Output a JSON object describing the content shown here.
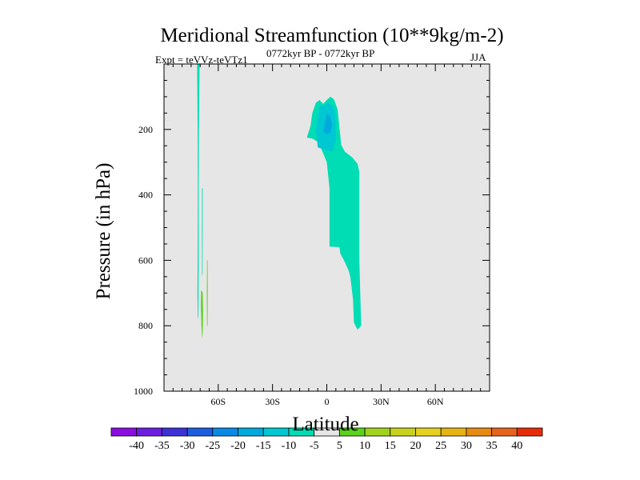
{
  "chart_data": {
    "type": "contour",
    "title": "Meridional Streamfunction (10**9kg/m-2)",
    "left_label": "Expt = teVVz-teVTz1",
    "center_label": "0772kyr BP - 0772kyr BP",
    "right_label": "JJA",
    "xlabel": "Latitude",
    "ylabel": "Pressure (in hPa)",
    "xlim": [
      -90,
      90
    ],
    "ylim": [
      1000,
      0
    ],
    "y_reversed": true,
    "x_ticks": [
      {
        "value": -60,
        "label": "60S"
      },
      {
        "value": -30,
        "label": "30S"
      },
      {
        "value": 0,
        "label": "0"
      },
      {
        "value": 30,
        "label": "30N"
      },
      {
        "value": 60,
        "label": "60N"
      }
    ],
    "y_ticks": [
      {
        "value": 200,
        "label": "200"
      },
      {
        "value": 400,
        "label": "400"
      },
      {
        "value": 600,
        "label": "600"
      },
      {
        "value": 800,
        "label": "800"
      },
      {
        "value": 1000,
        "label": "1000"
      }
    ],
    "background_color": "#e6e6e6",
    "colorbar": {
      "boundaries": [
        -45,
        -40,
        -35,
        -30,
        -25,
        -20,
        -15,
        -10,
        -5,
        5,
        10,
        15,
        20,
        25,
        30,
        35,
        40,
        45
      ],
      "labels": [
        "-40",
        "-35",
        "-30",
        "-25",
        "-20",
        "-15",
        "-10",
        "-5",
        "5",
        "10",
        "15",
        "20",
        "25",
        "30",
        "35",
        "40"
      ],
      "colors": [
        "#8a0ee0",
        "#6b1ee0",
        "#3c32d8",
        "#1d5ee0",
        "#0a8ae6",
        "#00aadc",
        "#00c8d2",
        "#00dcb4",
        "#e6e6e6",
        "#5ad21e",
        "#a0d21e",
        "#c8d21e",
        "#e6d21e",
        "#e6b414",
        "#e68c14",
        "#e6641e",
        "#e62d0a"
      ]
    },
    "regions": [
      {
        "name": "southern-hemisphere-cell",
        "fill": "#00dcb4",
        "value_range": [
          -10,
          -5
        ],
        "points": [
          [
            -11,
            225
          ],
          [
            -9,
            190
          ],
          [
            -8,
            150
          ],
          [
            -6,
            118
          ],
          [
            -4,
            110
          ],
          [
            -2,
            122
          ],
          [
            0,
            110
          ],
          [
            2,
            100
          ],
          [
            4,
            108
          ],
          [
            6,
            140
          ],
          [
            7,
            195
          ],
          [
            8,
            248
          ],
          [
            10,
            268
          ],
          [
            14,
            285
          ],
          [
            17,
            305
          ],
          [
            18,
            330
          ],
          [
            18,
            400
          ],
          [
            18,
            500
          ],
          [
            18,
            600
          ],
          [
            18.5,
            700
          ],
          [
            19,
            800
          ],
          [
            17,
            812
          ],
          [
            15,
            790
          ],
          [
            14.5,
            720
          ],
          [
            13,
            650
          ],
          [
            12,
            630
          ],
          [
            9.5,
            600
          ],
          [
            7.5,
            580
          ],
          [
            7,
            560
          ],
          [
            1.5,
            558
          ],
          [
            1.5,
            500
          ],
          [
            1.5,
            380
          ],
          [
            0,
            300
          ],
          [
            -3,
            260
          ],
          [
            -5,
            238
          ],
          [
            -8,
            228
          ]
        ]
      },
      {
        "name": "cell-core-outer",
        "fill": "#00c8d2",
        "value_range": [
          -15,
          -10
        ],
        "points": [
          [
            -5,
            255
          ],
          [
            -6,
            200
          ],
          [
            -5,
            165
          ],
          [
            -4,
            130
          ],
          [
            -1,
            128
          ],
          [
            0,
            118
          ],
          [
            2,
            124
          ],
          [
            4,
            132
          ],
          [
            5,
            175
          ],
          [
            5,
            230
          ],
          [
            3,
            268
          ],
          [
            -1,
            262
          ]
        ]
      },
      {
        "name": "cell-core-inner",
        "fill": "#00aadc",
        "value_range": [
          -20,
          -15
        ],
        "points": [
          [
            -2,
            205
          ],
          [
            -1,
            180
          ],
          [
            0,
            150
          ],
          [
            2,
            162
          ],
          [
            3,
            190
          ],
          [
            2,
            210
          ],
          [
            0,
            215
          ]
        ]
      },
      {
        "name": "polar-strip-main",
        "fill": "#00dcb4",
        "value_range": [
          -10,
          -5
        ],
        "points": [
          [
            -71.7,
            0
          ],
          [
            -70.3,
            0
          ],
          [
            -70.7,
            200
          ],
          [
            -70.8,
            400
          ],
          [
            -70.8,
            600
          ],
          [
            -71,
            770
          ],
          [
            -71.3,
            780
          ],
          [
            -71.5,
            700
          ],
          [
            -71.4,
            600
          ],
          [
            -71.3,
            400
          ],
          [
            -71.4,
            200
          ]
        ]
      },
      {
        "name": "polar-strip-small",
        "fill": "#00dcb4",
        "value_range": [
          -10,
          -5
        ],
        "points": [
          [
            -69,
            380
          ],
          [
            -68.6,
            380
          ],
          [
            -68.6,
            500
          ],
          [
            -68.7,
            640
          ],
          [
            -69,
            650
          ],
          [
            -69,
            520
          ]
        ]
      },
      {
        "name": "polar-strip-positive-1",
        "fill": "#5ad21e",
        "value_range": [
          5,
          10
        ],
        "points": [
          [
            -69.5,
            690
          ],
          [
            -68.6,
            700
          ],
          [
            -68.4,
            760
          ],
          [
            -68.6,
            820
          ],
          [
            -68.9,
            840
          ],
          [
            -69.3,
            800
          ],
          [
            -69.6,
            740
          ]
        ]
      },
      {
        "name": "polar-strip-positive-2",
        "fill": "#5ad21e",
        "value_range": [
          5,
          10
        ],
        "points": [
          [
            -66.2,
            600
          ],
          [
            -65.9,
            600
          ],
          [
            -65.8,
            700
          ],
          [
            -65.9,
            800
          ],
          [
            -66.2,
            800
          ],
          [
            -66.3,
            700
          ]
        ]
      }
    ]
  }
}
